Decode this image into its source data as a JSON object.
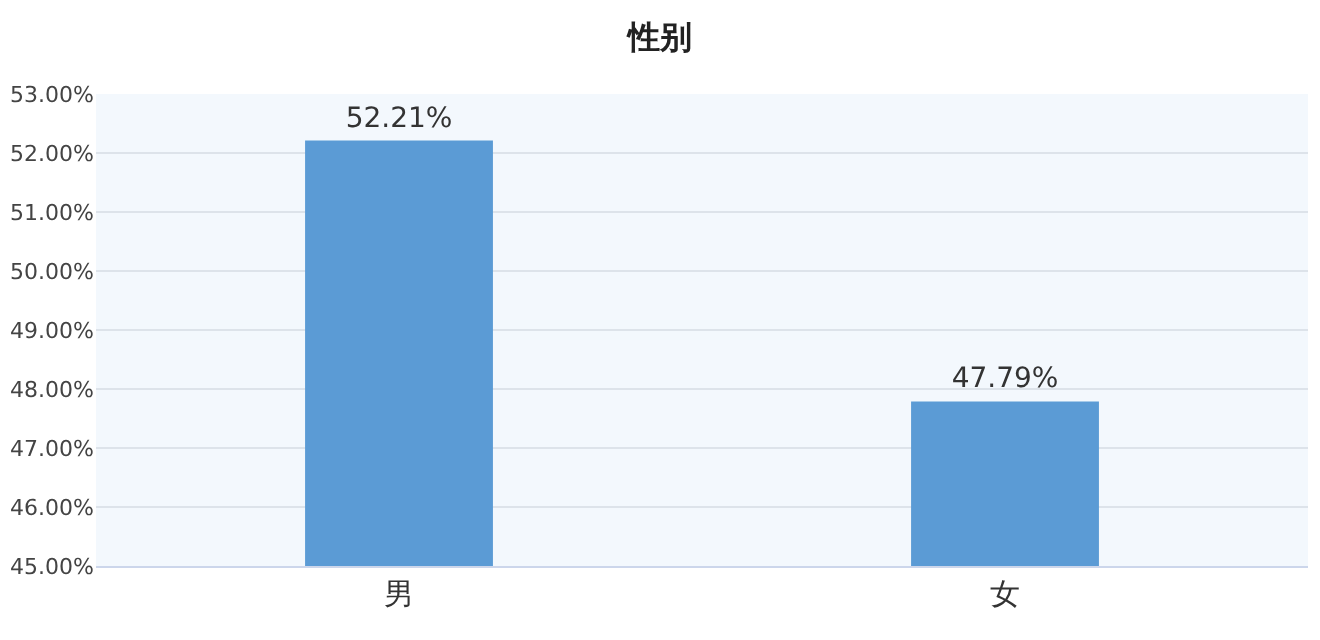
{
  "chart_data": {
    "type": "bar",
    "title": "性别",
    "categories": [
      "男",
      "女"
    ],
    "values": [
      52.21,
      47.79
    ],
    "color": "#5b9bd5",
    "value_labels": [
      "52.21%",
      "47.79%"
    ],
    "ylim": [
      45,
      53
    ],
    "yticks": [
      {
        "value": 45,
        "label": "45.00%"
      },
      {
        "value": 46,
        "label": "46.00%"
      },
      {
        "value": 47,
        "label": "47.00%"
      },
      {
        "value": 48,
        "label": "48.00%"
      },
      {
        "value": 49,
        "label": "49.00%"
      },
      {
        "value": 50,
        "label": "50.00%"
      },
      {
        "value": 51,
        "label": "51.00%"
      },
      {
        "value": 52,
        "label": "52.00%"
      },
      {
        "value": 53,
        "label": "53.00%"
      }
    ],
    "grid": "y",
    "legend": false
  }
}
